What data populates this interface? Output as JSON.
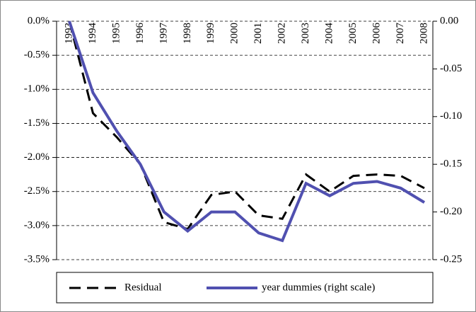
{
  "chart_data": {
    "type": "line",
    "categories": [
      "1993",
      "1994",
      "1995",
      "1996",
      "1997",
      "1998",
      "1999",
      "2000",
      "2001",
      "2002",
      "2003",
      "2004",
      "2005",
      "2006",
      "2007",
      "2008"
    ],
    "series": [
      {
        "name": "Residual",
        "color": "#000000",
        "style": "dashed",
        "values": [
          0.0,
          -1.35,
          -1.7,
          -2.1,
          -2.95,
          -3.05,
          -2.55,
          -2.5,
          -2.85,
          -2.9,
          -2.25,
          -2.5,
          -2.27,
          -2.25,
          -2.27,
          -2.45
        ]
      },
      {
        "name": "year dummies (right scale)",
        "color": "#5050b0",
        "style": "solid",
        "axis": "y2",
        "values": [
          0.0,
          -0.075,
          -0.115,
          -0.15,
          -0.2,
          -0.22,
          -0.2,
          -0.2,
          -0.222,
          -0.23,
          -0.17,
          -0.183,
          -0.17,
          -0.168,
          -0.175,
          -0.19
        ]
      }
    ],
    "ylim": [
      -3.5,
      0
    ],
    "yticks": [
      {
        "value": 0,
        "label": "0.0%"
      },
      {
        "value": -0.5,
        "label": "-0.5%"
      },
      {
        "value": -1,
        "label": "-1.0%"
      },
      {
        "value": -1.5,
        "label": "-1.5%"
      },
      {
        "value": -2,
        "label": "-2.0%"
      },
      {
        "value": -2.5,
        "label": "-2.5%"
      },
      {
        "value": -3,
        "label": "-3.0%"
      },
      {
        "value": -3.5,
        "label": "-3.5%"
      }
    ],
    "y2lim": [
      -0.25,
      0
    ],
    "y2ticks": [
      {
        "value": 0,
        "label": "0.00"
      },
      -0.05,
      {
        "value": -0.1,
        "label": "-0.10"
      },
      -0.15,
      {
        "value": -0.2,
        "label": "-0.20"
      },
      -0.25
    ],
    "grid": true,
    "legend": "bottom"
  }
}
